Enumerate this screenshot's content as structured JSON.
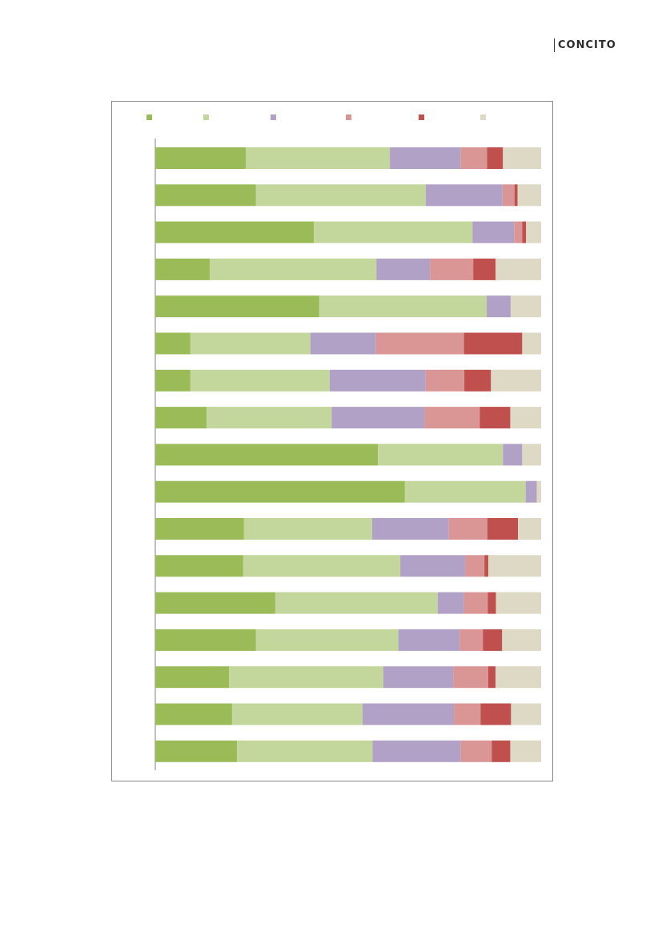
{
  "brand": {
    "name": "CONCITO"
  },
  "chart_data": {
    "type": "bar",
    "orientation": "horizontal",
    "stacked": true,
    "percent_stacked": true,
    "title": "",
    "xlabel": "",
    "ylabel": "",
    "grid": false,
    "legend_position": "top",
    "categories": [
      "",
      "",
      "",
      "",
      "",
      "",
      "",
      "",
      "",
      "",
      "",
      "",
      "",
      "",
      "",
      "",
      ""
    ],
    "series": [
      {
        "color": "#9bbb59",
        "values": [
          23.5,
          26.1,
          41.1,
          14.1,
          42.5,
          9.1,
          9.1,
          13.3,
          57.7,
          64.7,
          23.0,
          22.8,
          31.1,
          26.1,
          19.1,
          19.9,
          21.2
        ]
      },
      {
        "color": "#c3d69b",
        "values": [
          37.3,
          44.0,
          41.1,
          43.2,
          43.4,
          31.1,
          36.1,
          32.4,
          32.4,
          31.3,
          33.2,
          40.7,
          42.1,
          36.9,
          40.0,
          33.8,
          35.1
        ]
      },
      {
        "color": "#b2a1c7",
        "values": [
          18.3,
          19.9,
          10.8,
          13.9,
          6.2,
          17.0,
          24.9,
          24.1,
          5.0,
          2.9,
          19.9,
          16.8,
          6.8,
          15.9,
          18.1,
          23.7,
          22.8
        ]
      },
      {
        "color": "#d99694",
        "values": [
          6.9,
          3.1,
          2.1,
          11.2,
          0,
          22.8,
          10.0,
          14.3,
          0,
          0,
          10.0,
          5.0,
          6.2,
          6.0,
          9.1,
          6.9,
          8.1
        ]
      },
      {
        "color": "#c0504d",
        "values": [
          4.1,
          0.8,
          1.0,
          5.8,
          0,
          15.1,
          6.9,
          7.9,
          0,
          0,
          7.9,
          1.0,
          2.1,
          5.0,
          1.9,
          7.9,
          4.8
        ]
      },
      {
        "color": "#ddd9c4",
        "values": [
          9.9,
          6.1,
          3.9,
          11.8,
          7.9,
          4.9,
          13.0,
          8.0,
          4.9,
          1.1,
          6.0,
          13.7,
          11.7,
          10.1,
          11.8,
          7.8,
          8.0
        ]
      }
    ]
  }
}
